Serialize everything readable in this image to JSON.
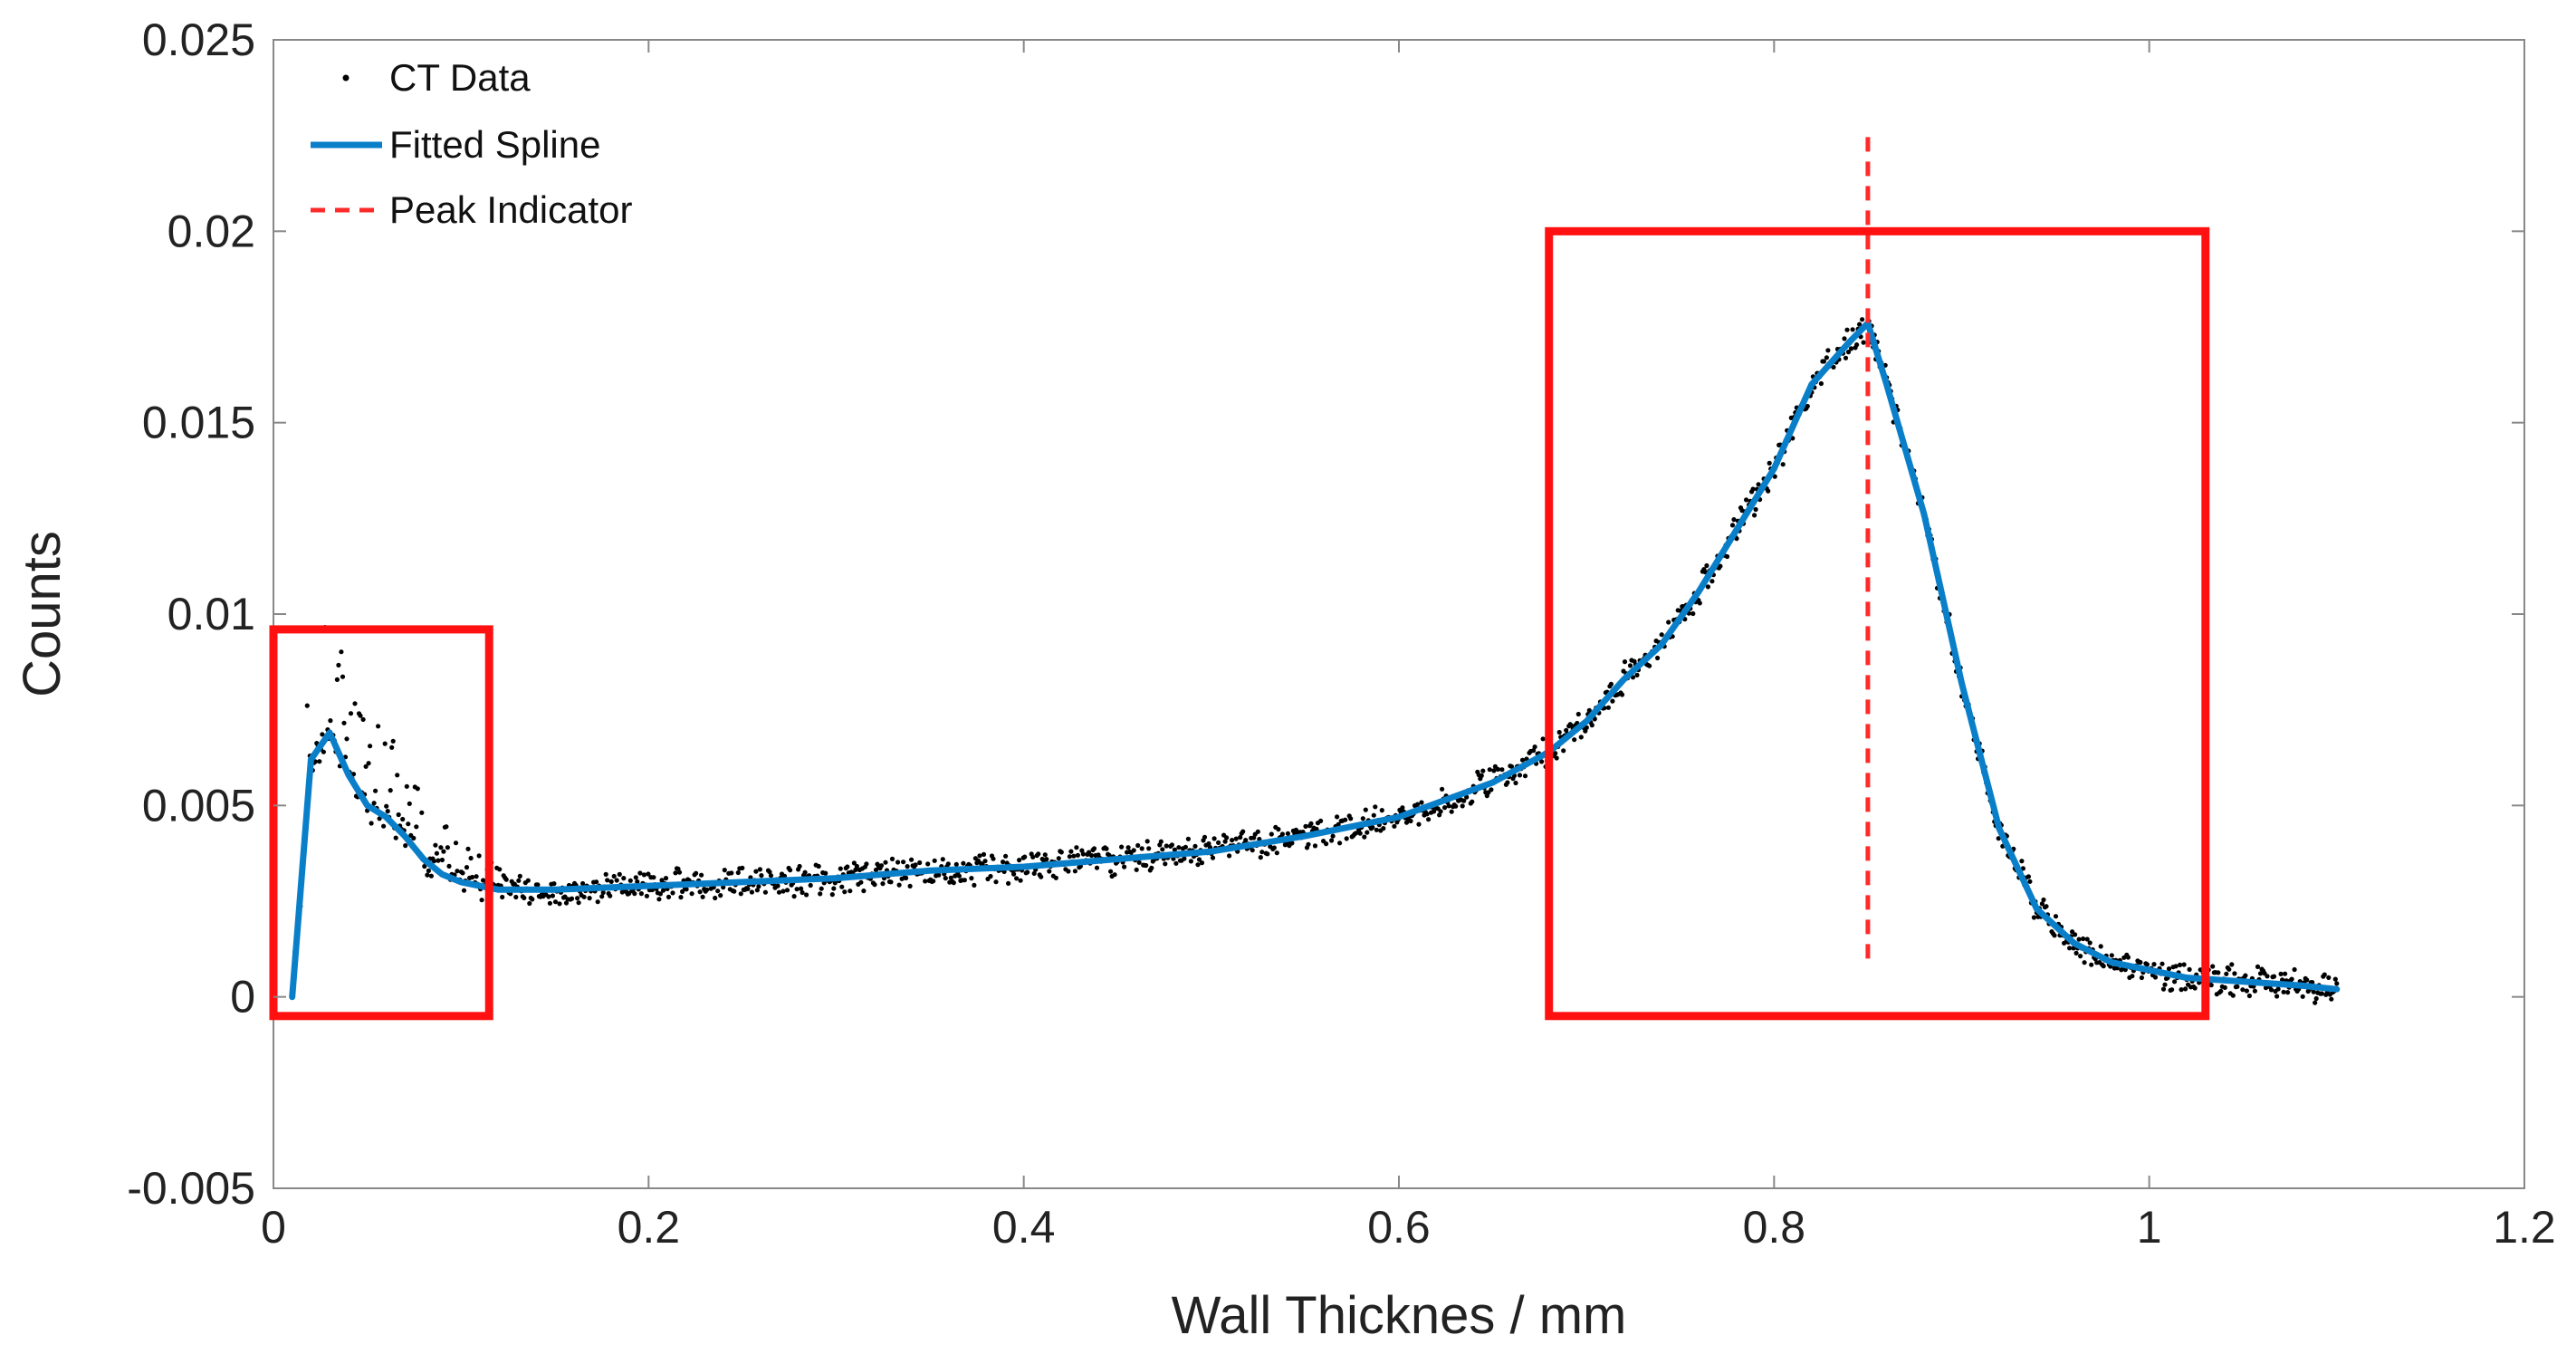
{
  "chart_data": {
    "type": "line",
    "title": "",
    "xlabel": "Wall Thicknes / mm",
    "ylabel": "Counts",
    "xlim": [
      0,
      1.2
    ],
    "ylim": [
      -0.005,
      0.025
    ],
    "xticks": [
      0,
      0.2,
      0.4,
      0.6,
      0.8,
      1,
      1.2
    ],
    "xtick_labels": [
      "0",
      "0.2",
      "0.4",
      "0.6",
      "0.8",
      "1",
      "1.2"
    ],
    "yticks": [
      -0.005,
      0,
      0.005,
      0.01,
      0.015,
      0.02,
      0.025
    ],
    "ytick_labels": [
      "-0.005",
      "0",
      "0.005",
      "0.01",
      "0.015",
      "0.02",
      "0.025"
    ],
    "grid": false,
    "legend": {
      "position": "top-left",
      "entries": [
        {
          "label": "CT Data",
          "style": "dots",
          "color": "#000000"
        },
        {
          "label": "Fitted Spline",
          "style": "solid",
          "color": "#0a7fc9"
        },
        {
          "label": "Peak Indicator",
          "style": "dashed",
          "color": "#ff2a2a"
        }
      ]
    },
    "series": [
      {
        "name": "Fitted Spline",
        "color": "#0a7fc9",
        "x": [
          0.01,
          0.02,
          0.03,
          0.04,
          0.05,
          0.06,
          0.07,
          0.08,
          0.09,
          0.1,
          0.12,
          0.15,
          0.2,
          0.25,
          0.3,
          0.35,
          0.4,
          0.45,
          0.5,
          0.55,
          0.6,
          0.65,
          0.68,
          0.7,
          0.72,
          0.74,
          0.76,
          0.78,
          0.8,
          0.82,
          0.84,
          0.85,
          0.86,
          0.88,
          0.9,
          0.92,
          0.94,
          0.96,
          0.98,
          1.0,
          1.02,
          1.05,
          1.08,
          1.1
        ],
        "y": [
          0.0,
          0.0062,
          0.0069,
          0.0058,
          0.005,
          0.0047,
          0.0042,
          0.0036,
          0.0032,
          0.003,
          0.0028,
          0.0028,
          0.0029,
          0.003,
          0.0031,
          0.0033,
          0.0034,
          0.0036,
          0.0038,
          0.0042,
          0.0047,
          0.0056,
          0.0064,
          0.0072,
          0.0083,
          0.0092,
          0.0106,
          0.0122,
          0.0138,
          0.016,
          0.0171,
          0.0176,
          0.016,
          0.0126,
          0.0082,
          0.0044,
          0.0023,
          0.0014,
          0.0009,
          0.0007,
          0.0005,
          0.0004,
          0.0003,
          0.0002
        ]
      },
      {
        "name": "Peak Indicator",
        "color": "#ff2a2a",
        "x": [
          0.85,
          0.85
        ],
        "y": [
          0.001,
          0.0225
        ]
      }
    ],
    "scatter": {
      "name": "CT Data",
      "color": "#000000",
      "follows": "Fitted Spline",
      "x_range": [
        0.01,
        1.1
      ]
    },
    "annotations": [
      {
        "type": "rectangle",
        "color": "#ff1111",
        "x_range": [
          0.0,
          0.115
        ],
        "y_range": [
          -0.0005,
          0.0096
        ]
      },
      {
        "type": "rectangle",
        "color": "#ff1111",
        "x_range": [
          0.68,
          1.03
        ],
        "y_range": [
          -0.0005,
          0.02
        ]
      }
    ]
  }
}
